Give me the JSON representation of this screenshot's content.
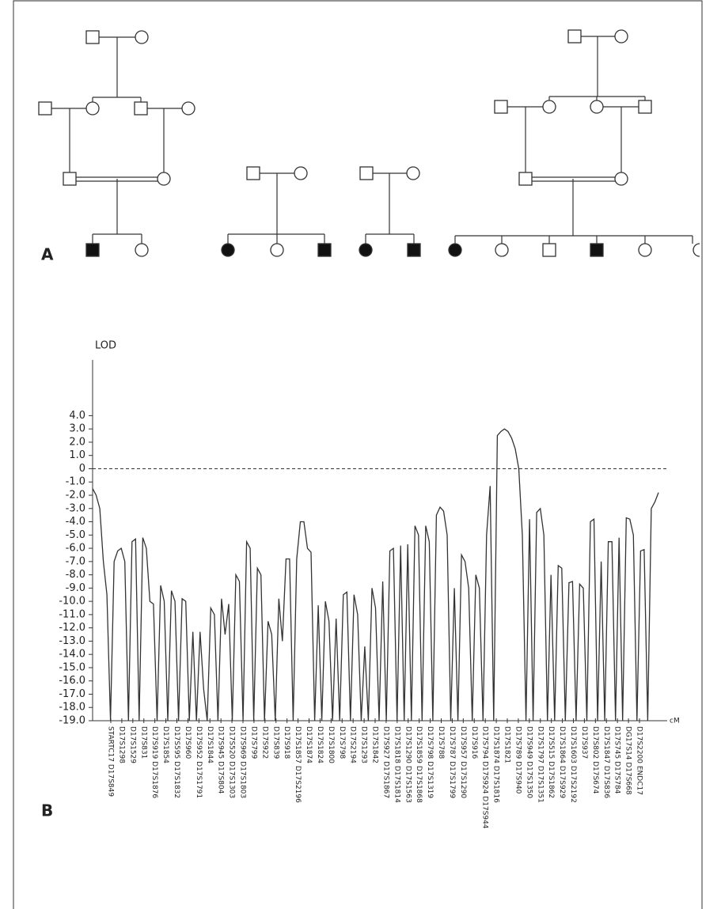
{
  "panel_a": {
    "label": "A"
  },
  "panel_b": {
    "label": "B"
  },
  "chart_data": {
    "type": "line",
    "y_label": "LOD",
    "x_label": "cM",
    "color": "#333333",
    "values": [
      -1.5,
      -2,
      -3,
      -7,
      -9.5,
      -19,
      -7,
      -6.2,
      -6,
      -7,
      -19,
      -5.5,
      -5.3,
      -19,
      -5.2,
      -6,
      -10,
      -10.2,
      -19,
      -8.8,
      -10,
      -19,
      -9.2,
      -10,
      -19,
      -9.8,
      -10,
      -19,
      -12.3,
      -19,
      -12.3,
      -16.6,
      -19,
      -10.5,
      -11,
      -19,
      -9.8,
      -12.5,
      -10.2,
      -19,
      -8,
      -8.5,
      -19,
      -5.5,
      -6,
      -19,
      -7.5,
      -8,
      -19,
      -11.5,
      -12.5,
      -19,
      -9.8,
      -13,
      -6.8,
      -6.8,
      -19,
      -6.8,
      -4,
      -4,
      -6,
      -6.3,
      -19,
      -10.3,
      -19,
      -10,
      -11.5,
      -19,
      -11.3,
      -19,
      -9.5,
      -9.3,
      -19,
      -9.5,
      -11,
      -19,
      -13.4,
      -19,
      -9,
      -10.5,
      -19,
      -8.5,
      -19,
      -6.2,
      -6,
      -19,
      -5.8,
      -19,
      -5.7,
      -19,
      -4.3,
      -5,
      -19,
      -4.3,
      -5.5,
      -19,
      -3.5,
      -2.9,
      -3.2,
      -5,
      -19,
      -9,
      -19,
      -6.5,
      -7,
      -9,
      -19,
      -8,
      -9,
      -19,
      -5,
      -1.3,
      -19,
      2.5,
      2.8,
      3,
      2.8,
      2.3,
      1.5,
      0,
      -5,
      -19,
      -3.8,
      -19,
      -3.3,
      -3,
      -5,
      -19,
      -8,
      -19,
      -7.3,
      -7.5,
      -19,
      -8.6,
      -8.5,
      -19,
      -8.7,
      -9,
      -19,
      -4,
      -3.8,
      -19,
      -7,
      -19,
      -5.5,
      -5.5,
      -19,
      -5.2,
      -19,
      -3.7,
      -3.8,
      -5,
      -19,
      -6.2,
      -6.1,
      -19,
      -3,
      -2.5,
      -1.8
    ],
    "reference_line": 0,
    "ylim": [
      -19,
      8.2
    ],
    "yticks": [
      {
        "value": 4,
        "label": "4.0"
      },
      {
        "value": 3,
        "label": "3.0"
      },
      {
        "value": 2,
        "label": "2.0"
      },
      {
        "value": 1,
        "label": "1.0"
      },
      0,
      {
        "value": -1,
        "label": "-1.0"
      },
      {
        "value": -2,
        "label": "-2.0"
      },
      {
        "value": -3,
        "label": "-3.0"
      },
      {
        "value": -4,
        "label": "-4.0"
      },
      {
        "value": -5,
        "label": "-5.0"
      },
      {
        "value": -6,
        "label": "-6.0"
      },
      {
        "value": -7,
        "label": "-7.0"
      },
      {
        "value": -8,
        "label": "-8.0"
      },
      {
        "value": -9,
        "label": "-9.0"
      },
      {
        "value": -10,
        "label": "-10.0"
      },
      {
        "value": -11,
        "label": "-11.0"
      },
      {
        "value": -12,
        "label": "-12.0"
      },
      {
        "value": -13,
        "label": "-13.0"
      },
      {
        "value": -14,
        "label": "-14.0"
      },
      {
        "value": -15,
        "label": "-15.0"
      },
      {
        "value": -16,
        "label": "-16.0"
      },
      {
        "value": -17,
        "label": "-17.0"
      },
      {
        "value": -18,
        "label": "-18.0"
      },
      {
        "value": -19,
        "label": "-19.0"
      }
    ],
    "markers": [
      "STARTC17 D17S849",
      "D17S1298",
      "D17S1529",
      "D17S831",
      "D17S919 D17S1876",
      "D17S1854",
      "D17S595 D17S1832",
      "D17S960",
      "D17S952 D17S1791",
      "D17S1844",
      "D17S945 D17S804",
      "D17S520 D17S1303",
      "D17S969 D17S1803",
      "D17S799",
      "D17S922",
      "D17S839",
      "D17S918",
      "D17S1857 D17S2196",
      "D17S1874",
      "D17S1824",
      "D17S1800",
      "D17S798",
      "D17S2194",
      "D17S1293",
      "D17S1842",
      "D17S927 D17S1867",
      "D17S1818 D17S1814",
      "D17S1290 D17S1563",
      "D17S1859 D17S1868",
      "D17S798 D17S1319",
      "D17S788",
      "D17S787 D17S1799",
      "D17S957 D17S1290",
      "D17S916",
      "D17S794 D17S924 D17S944",
      "D17S1874 D17S1816",
      "D17S1821",
      "D17S789 D17S940",
      "D17S949 D17S1350",
      "D17S1797 D17S1351",
      "D17S515 D17S1862",
      "D17S1864 D17S929",
      "D17S1603 D17S2192",
      "D17S937",
      "D17S802 D17S674",
      "D17S1847 D17S836",
      "D17S745 D17S784",
      "DG17S14 D17S668",
      "D17S2200 ENDC17"
    ]
  }
}
